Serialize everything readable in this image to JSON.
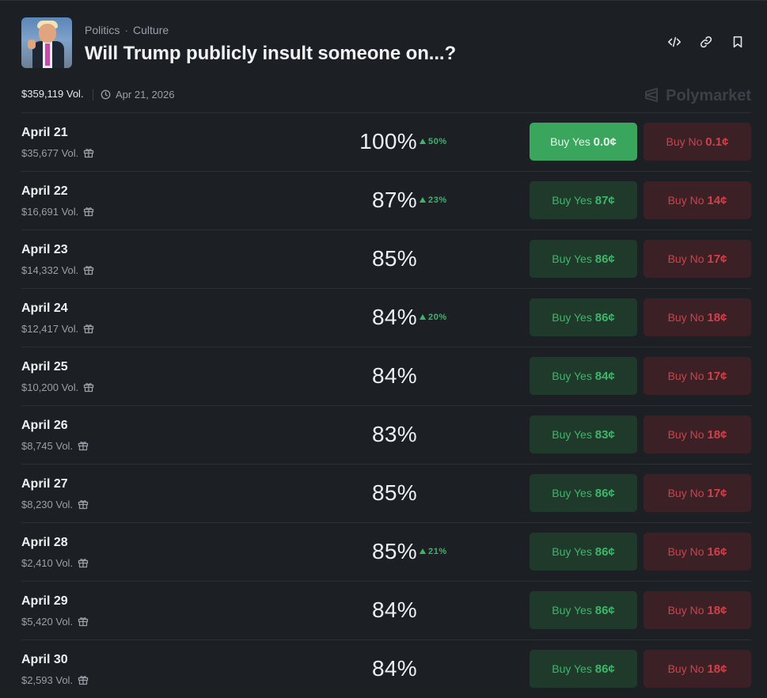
{
  "header": {
    "breadcrumb": [
      "Politics",
      "Culture"
    ],
    "title": "Will Trump publicly insult someone on...?",
    "actions": [
      {
        "name": "embed-icon"
      },
      {
        "name": "link-icon"
      },
      {
        "name": "bookmark-icon"
      }
    ]
  },
  "meta": {
    "total_volume": "$359,119 Vol.",
    "end_date": "Apr 21, 2026",
    "brand": "Polymarket"
  },
  "colors": {
    "background": "#1c1f24",
    "yes_green": "#3fb56a",
    "no_red": "#d2404a",
    "active_yes": "#3aa55d"
  },
  "rows": [
    {
      "date": "April 21",
      "volume": "$35,677 Vol.",
      "percent": "100%",
      "change": "50%",
      "yes_label": "Buy Yes",
      "yes_price": "0.0¢",
      "no_label": "Buy No",
      "no_price": "0.1¢",
      "active": true
    },
    {
      "date": "April 22",
      "volume": "$16,691 Vol.",
      "percent": "87%",
      "change": "23%",
      "yes_label": "Buy Yes",
      "yes_price": "87¢",
      "no_label": "Buy No",
      "no_price": "14¢",
      "active": false
    },
    {
      "date": "April 23",
      "volume": "$14,332 Vol.",
      "percent": "85%",
      "change": "",
      "yes_label": "Buy Yes",
      "yes_price": "86¢",
      "no_label": "Buy No",
      "no_price": "17¢",
      "active": false
    },
    {
      "date": "April 24",
      "volume": "$12,417 Vol.",
      "percent": "84%",
      "change": "20%",
      "yes_label": "Buy Yes",
      "yes_price": "86¢",
      "no_label": "Buy No",
      "no_price": "18¢",
      "active": false
    },
    {
      "date": "April 25",
      "volume": "$10,200 Vol.",
      "percent": "84%",
      "change": "",
      "yes_label": "Buy Yes",
      "yes_price": "84¢",
      "no_label": "Buy No",
      "no_price": "17¢",
      "active": false
    },
    {
      "date": "April 26",
      "volume": "$8,745 Vol.",
      "percent": "83%",
      "change": "",
      "yes_label": "Buy Yes",
      "yes_price": "83¢",
      "no_label": "Buy No",
      "no_price": "18¢",
      "active": false
    },
    {
      "date": "April 27",
      "volume": "$8,230 Vol.",
      "percent": "85%",
      "change": "",
      "yes_label": "Buy Yes",
      "yes_price": "86¢",
      "no_label": "Buy No",
      "no_price": "17¢",
      "active": false
    },
    {
      "date": "April 28",
      "volume": "$2,410 Vol.",
      "percent": "85%",
      "change": "21%",
      "yes_label": "Buy Yes",
      "yes_price": "86¢",
      "no_label": "Buy No",
      "no_price": "16¢",
      "active": false
    },
    {
      "date": "April 29",
      "volume": "$5,420 Vol.",
      "percent": "84%",
      "change": "",
      "yes_label": "Buy Yes",
      "yes_price": "86¢",
      "no_label": "Buy No",
      "no_price": "18¢",
      "active": false
    },
    {
      "date": "April 30",
      "volume": "$2,593 Vol.",
      "percent": "84%",
      "change": "",
      "yes_label": "Buy Yes",
      "yes_price": "86¢",
      "no_label": "Buy No",
      "no_price": "18¢",
      "active": false
    }
  ]
}
